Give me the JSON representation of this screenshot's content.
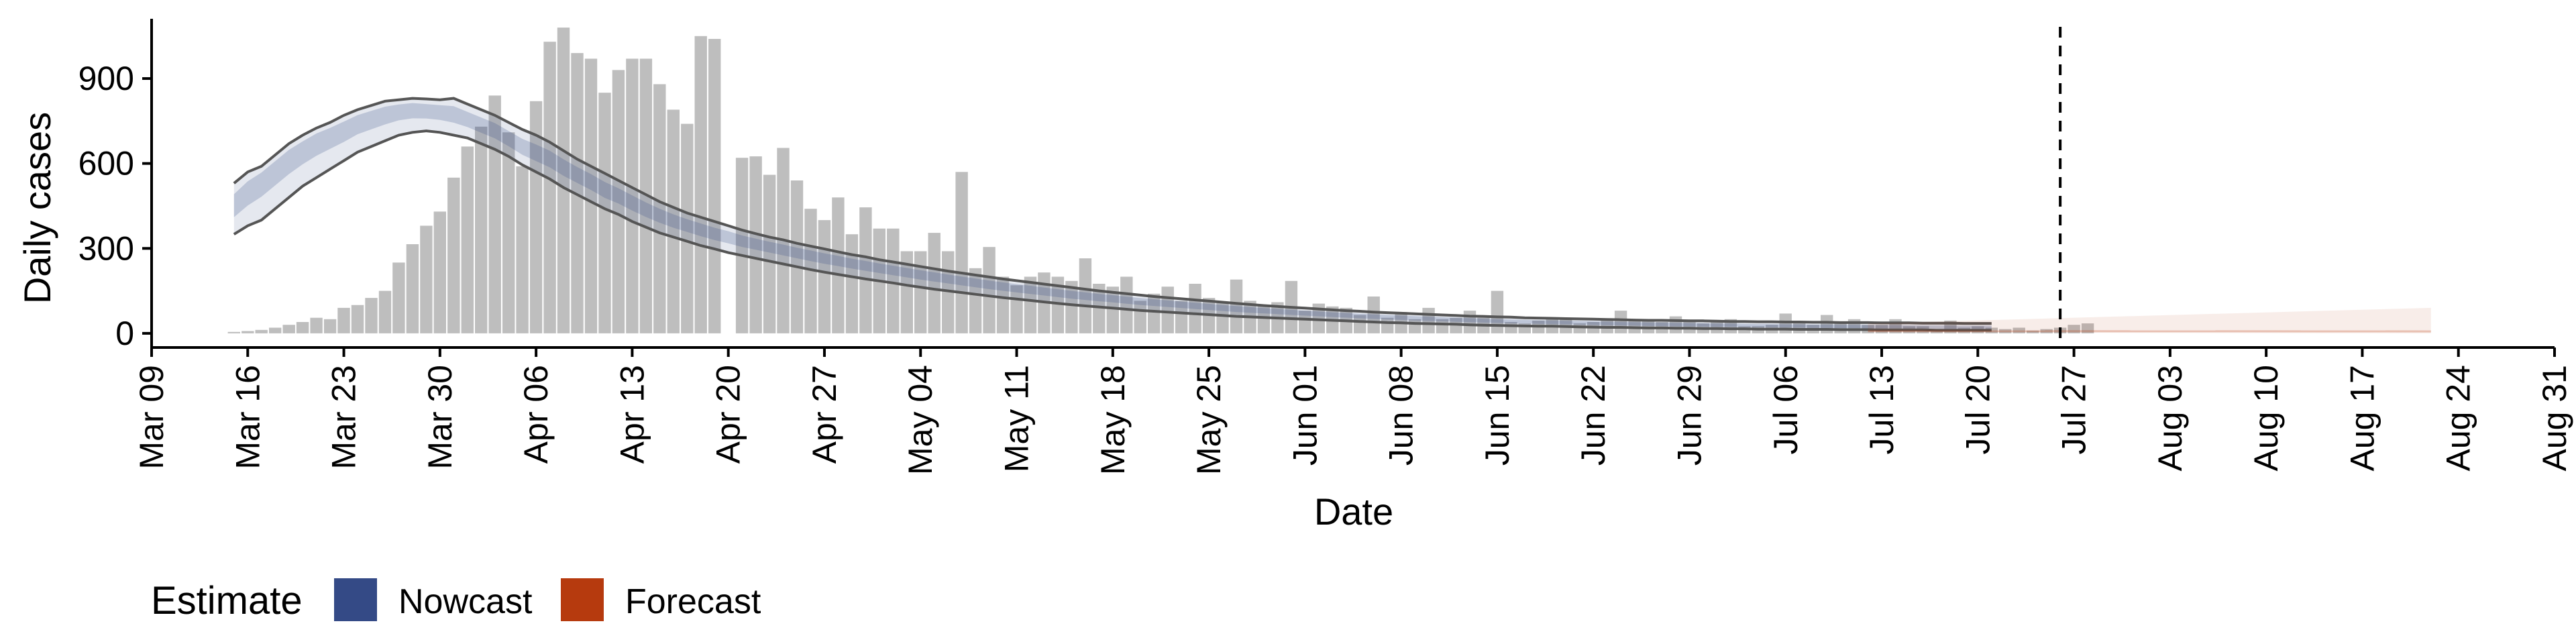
{
  "chart_data": {
    "type": "bar",
    "title": "",
    "xlabel": "Date",
    "ylabel": "Daily cases",
    "ylim": [
      -50,
      1130
    ],
    "yticks": [
      0,
      300,
      600,
      900
    ],
    "ytick_labels": [
      "0",
      "300",
      "600",
      "900"
    ],
    "xticks": [
      "Mar 09",
      "Mar 16",
      "Mar 23",
      "Mar 30",
      "Apr 06",
      "Apr 13",
      "Apr 20",
      "Apr 27",
      "May 04",
      "May 11",
      "May 18",
      "May 25",
      "Jun 01",
      "Jun 08",
      "Jun 15",
      "Jun 22",
      "Jun 29",
      "Jul 06",
      "Jul 13",
      "Jul 20",
      "Jul 27",
      "Aug 03",
      "Aug 10",
      "Aug 17",
      "Aug 24",
      "Aug 31"
    ],
    "x_start_date": "Mar 09",
    "forecast_start": "Jul 26",
    "grid": false,
    "legend_position": "bottom-left",
    "colors": {
      "bars": "#bebebe",
      "nowcast": "#344a86",
      "forecast": "#b63a0e",
      "outline": "#555555",
      "vline": "#000000"
    },
    "legend": {
      "title": "Estimate",
      "items": [
        {
          "label": "Nowcast",
          "color": "#344a86"
        },
        {
          "label": "Forecast",
          "color": "#b63a0e"
        }
      ]
    },
    "reported_cases": {
      "start": "Mar 15",
      "values": [
        5,
        8,
        12,
        20,
        30,
        40,
        55,
        50,
        90,
        100,
        125,
        150,
        250,
        315,
        380,
        430,
        550,
        660,
        730,
        840,
        710,
        590,
        820,
        1030,
        1080,
        990,
        970,
        850,
        930,
        970,
        970,
        880,
        790,
        740,
        1050,
        1040,
        0,
        620,
        625,
        560,
        655,
        540,
        440,
        400,
        480,
        350,
        445,
        370,
        370,
        290,
        290,
        355,
        290,
        570,
        230,
        305,
        200,
        170,
        200,
        215,
        200,
        185,
        265,
        175,
        165,
        200,
        115,
        140,
        165,
        115,
        175,
        125,
        110,
        190,
        115,
        100,
        110,
        185,
        80,
        105,
        95,
        90,
        65,
        130,
        55,
        75,
        50,
        90,
        50,
        55,
        80,
        55,
        150,
        40,
        35,
        45,
        55,
        50,
        35,
        40,
        50,
        80,
        45,
        50,
        40,
        60,
        40,
        35,
        40,
        50,
        25,
        25,
        30,
        70,
        40,
        30,
        65,
        35,
        50,
        30,
        30,
        50,
        25,
        25,
        15,
        45,
        20,
        25,
        20,
        15,
        20,
        10,
        15,
        20,
        30,
        35
      ]
    },
    "nowcast": {
      "start": "Mar 15",
      "median": [
        460,
        510,
        550,
        590,
        630,
        660,
        690,
        710,
        730,
        755,
        770,
        785,
        795,
        800,
        795,
        790,
        780,
        760,
        740,
        720,
        690,
        660,
        640,
        620,
        590,
        565,
        540,
        510,
        490,
        465,
        440,
        420,
        400,
        385,
        370,
        355,
        345,
        330,
        320,
        310,
        300,
        290,
        280,
        270,
        262,
        252,
        244,
        236,
        228,
        220,
        212,
        205,
        198,
        190,
        183,
        176,
        170,
        164,
        158,
        152,
        146,
        140,
        135,
        130,
        126,
        121,
        116,
        112,
        108,
        104,
        100,
        96,
        92,
        88,
        85,
        82,
        79,
        76,
        73,
        70,
        67,
        65,
        62,
        60,
        58,
        56,
        54,
        52,
        50,
        48,
        47,
        45,
        44,
        42,
        41,
        40,
        39,
        38,
        37,
        36,
        35,
        34,
        33,
        32,
        31,
        30,
        30,
        29,
        28,
        28,
        27,
        26,
        26,
        25,
        25,
        24,
        24,
        23,
        23,
        22,
        22,
        22,
        21,
        21,
        21,
        20,
        20,
        20,
        20
      ],
      "lower": [
        350,
        380,
        400,
        440,
        480,
        520,
        550,
        580,
        610,
        640,
        660,
        680,
        700,
        710,
        715,
        710,
        700,
        690,
        670,
        650,
        625,
        595,
        570,
        545,
        515,
        490,
        465,
        440,
        420,
        395,
        375,
        355,
        340,
        325,
        310,
        298,
        285,
        275,
        265,
        255,
        245,
        235,
        225,
        216,
        208,
        200,
        192,
        185,
        178,
        170,
        163,
        156,
        150,
        144,
        138,
        132,
        126,
        121,
        116,
        111,
        106,
        101,
        97,
        93,
        89,
        85,
        81,
        78,
        75,
        72,
        69,
        66,
        63,
        60,
        58,
        56,
        54,
        52,
        50,
        48,
        46,
        44,
        42,
        40,
        38,
        37,
        35,
        34,
        33,
        32,
        30,
        29,
        28,
        27,
        26,
        25,
        25,
        24,
        23,
        22,
        21,
        21,
        20,
        19,
        19,
        18,
        18,
        17,
        17,
        16,
        16,
        15,
        15,
        15,
        14,
        14,
        14,
        13,
        13,
        13,
        12,
        12,
        12,
        12,
        11,
        11,
        11,
        11,
        11
      ],
      "upper": [
        530,
        570,
        590,
        630,
        670,
        700,
        725,
        745,
        770,
        790,
        805,
        820,
        825,
        830,
        828,
        825,
        830,
        810,
        790,
        770,
        745,
        720,
        700,
        675,
        645,
        615,
        590,
        565,
        540,
        515,
        490,
        465,
        445,
        425,
        410,
        395,
        380,
        365,
        352,
        340,
        330,
        318,
        308,
        298,
        288,
        278,
        270,
        260,
        252,
        244,
        236,
        228,
        220,
        213,
        206,
        199,
        192,
        186,
        180,
        174,
        168,
        162,
        156,
        150,
        145,
        140,
        135,
        130,
        126,
        122,
        118,
        114,
        110,
        106,
        102,
        98,
        95,
        92,
        89,
        86,
        83,
        80,
        78,
        75,
        73,
        71,
        69,
        67,
        65,
        63,
        61,
        60,
        58,
        57,
        55,
        54,
        53,
        52,
        51,
        50,
        49,
        48,
        47,
        46,
        46,
        45,
        44,
        44,
        43,
        42,
        42,
        41,
        41,
        40,
        40,
        39,
        39,
        38,
        38,
        38,
        37,
        37,
        37,
        36,
        36,
        36,
        35,
        35,
        35
      ]
    },
    "forecast": {
      "start": "Jul 26",
      "end": "Aug 22",
      "median_start": 8,
      "median_end": 7,
      "lower_start": 3,
      "lower_end": 0,
      "upper_start": 35,
      "upper_end": 90
    }
  }
}
